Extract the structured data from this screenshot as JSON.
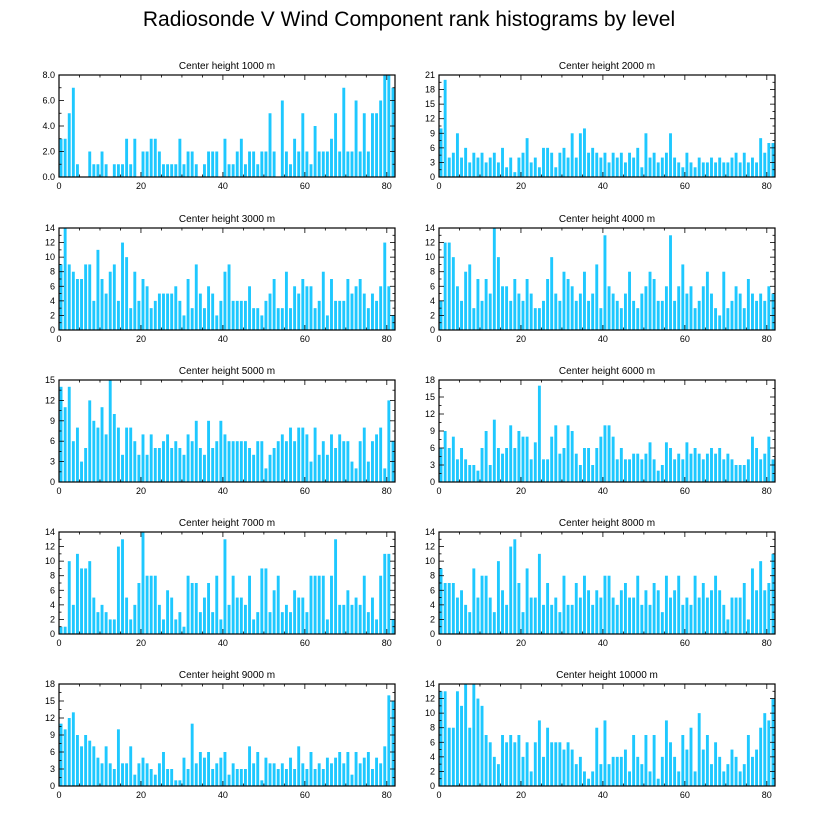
{
  "title": "Radiosonde V Wind Component rank histograms by level",
  "style": {
    "bar_color": "#1ec8ff",
    "axis_color": "#000000"
  },
  "chart_data": [
    {
      "type": "bar",
      "title": "Center height 1000 m",
      "x_start": 0,
      "xlim": [
        0,
        82
      ],
      "xticks": [
        0,
        20,
        40,
        60,
        80
      ],
      "ylim": [
        0,
        8
      ],
      "yticks": [
        0,
        2,
        4,
        6,
        8
      ],
      "ytick_labels": [
        "0.0",
        "2.0",
        "4.0",
        "6.0",
        "8.0"
      ],
      "values": [
        3,
        3,
        5,
        7,
        1,
        0,
        0,
        2,
        1,
        1,
        2,
        1,
        0,
        1,
        1,
        1,
        3,
        1,
        3,
        0,
        2,
        2,
        3,
        3,
        2,
        1,
        1,
        1,
        1,
        3,
        1,
        2,
        2,
        1,
        0,
        1,
        2,
        2,
        2,
        0,
        3,
        1,
        1,
        2,
        3,
        1,
        2,
        2,
        1,
        2,
        2,
        5,
        2,
        0,
        6,
        2,
        1,
        3,
        2,
        5,
        2,
        1,
        4,
        2,
        2,
        2,
        3,
        5,
        2,
        7,
        2,
        2,
        6,
        2,
        5,
        2,
        5,
        5,
        6,
        8,
        8,
        7
      ]
    },
    {
      "type": "bar",
      "title": "Center height 2000 m",
      "x_start": 0,
      "xlim": [
        0,
        82
      ],
      "xticks": [
        0,
        20,
        40,
        60,
        80
      ],
      "ylim": [
        0,
        21
      ],
      "yticks": [
        0,
        3,
        6,
        9,
        12,
        15,
        18,
        21
      ],
      "ytick_labels": [
        "0",
        "3",
        "6",
        "9",
        "12",
        "15",
        "18",
        "21"
      ],
      "values": [
        10,
        20,
        4,
        5,
        9,
        4,
        6,
        3,
        5,
        4,
        5,
        3,
        4,
        5,
        3,
        6,
        2,
        4,
        1,
        4,
        5,
        8,
        3,
        4,
        2,
        6,
        6,
        5,
        2,
        5,
        6,
        4,
        9,
        4,
        9,
        10,
        5,
        6,
        5,
        4,
        5,
        3,
        5,
        4,
        5,
        3,
        5,
        4,
        6,
        2,
        9,
        4,
        5,
        3,
        4,
        5,
        9,
        4,
        3,
        2,
        5,
        3,
        2,
        4,
        3,
        3,
        4,
        3,
        4,
        3,
        3,
        4,
        5,
        3,
        5,
        3,
        4,
        3,
        8,
        5,
        7,
        7
      ]
    },
    {
      "type": "bar",
      "title": "Center height 3000 m",
      "x_start": 0,
      "xlim": [
        0,
        82
      ],
      "xticks": [
        0,
        20,
        40,
        60,
        80
      ],
      "ylim": [
        0,
        14
      ],
      "yticks": [
        0,
        2,
        4,
        6,
        8,
        10,
        12,
        14
      ],
      "ytick_labels": [
        "0",
        "2",
        "4",
        "6",
        "8",
        "10",
        "12",
        "14"
      ],
      "values": [
        9,
        14,
        9,
        8,
        7,
        7,
        9,
        9,
        4,
        11,
        7,
        5,
        8,
        9,
        4,
        12,
        10,
        3,
        8,
        4,
        7,
        6,
        3,
        4,
        5,
        5,
        5,
        5,
        6,
        4,
        2,
        7,
        3,
        9,
        5,
        3,
        6,
        5,
        2,
        4,
        8,
        9,
        4,
        4,
        4,
        4,
        6,
        3,
        3,
        2,
        4,
        5,
        7,
        3,
        3,
        8,
        3,
        6,
        5,
        7,
        6,
        6,
        3,
        4,
        8,
        2,
        7,
        4,
        4,
        4,
        7,
        5,
        6,
        7,
        5,
        3,
        5,
        4,
        6,
        12,
        6,
        2
      ]
    },
    {
      "type": "bar",
      "title": "Center height 4000 m",
      "x_start": 0,
      "xlim": [
        0,
        82
      ],
      "xticks": [
        0,
        20,
        40,
        60,
        80
      ],
      "ylim": [
        0,
        14
      ],
      "yticks": [
        0,
        2,
        4,
        6,
        8,
        10,
        12,
        14
      ],
      "ytick_labels": [
        "0",
        "2",
        "4",
        "6",
        "8",
        "10",
        "12",
        "14"
      ],
      "values": [
        4,
        12,
        12,
        10,
        6,
        4,
        8,
        9,
        3,
        7,
        4,
        7,
        5,
        14,
        10,
        6,
        6,
        4,
        7,
        5,
        4,
        7,
        5,
        3,
        3,
        4,
        7,
        10,
        5,
        4,
        8,
        7,
        6,
        4,
        5,
        8,
        4,
        5,
        9,
        3,
        13,
        6,
        5,
        4,
        3,
        5,
        8,
        4,
        3,
        5,
        6,
        8,
        7,
        4,
        4,
        6,
        13,
        4,
        6,
        9,
        5,
        6,
        3,
        4,
        6,
        8,
        5,
        3,
        2,
        8,
        3,
        4,
        6,
        5,
        3,
        7,
        5,
        4,
        5,
        4,
        6,
        5
      ]
    },
    {
      "type": "bar",
      "title": "Center height 5000 m",
      "x_start": 0,
      "xlim": [
        0,
        82
      ],
      "xticks": [
        0,
        20,
        40,
        60,
        80
      ],
      "ylim": [
        0,
        15
      ],
      "yticks": [
        0,
        3,
        6,
        9,
        12,
        15
      ],
      "ytick_labels": [
        "0",
        "3",
        "6",
        "9",
        "12",
        "15"
      ],
      "values": [
        14,
        11,
        14,
        6,
        8,
        3,
        5,
        12,
        9,
        8,
        11,
        7,
        15,
        10,
        8,
        4,
        8,
        8,
        6,
        4,
        7,
        4,
        7,
        5,
        5,
        6,
        7,
        5,
        6,
        5,
        4,
        7,
        6,
        9,
        5,
        4,
        9,
        5,
        6,
        9,
        7,
        6,
        6,
        6,
        6,
        6,
        5,
        4,
        6,
        6,
        2,
        4,
        5,
        6,
        7,
        6,
        8,
        6,
        8,
        8,
        7,
        3,
        8,
        4,
        6,
        4,
        7,
        5,
        7,
        6,
        6,
        3,
        2,
        6,
        8,
        3,
        6,
        7,
        8,
        2,
        12,
        6
      ]
    },
    {
      "type": "bar",
      "title": "Center height 6000 m",
      "x_start": 0,
      "xlim": [
        0,
        82
      ],
      "xticks": [
        0,
        20,
        40,
        60,
        80
      ],
      "ylim": [
        0,
        18
      ],
      "yticks": [
        0,
        3,
        6,
        9,
        12,
        15,
        18
      ],
      "ytick_labels": [
        "0",
        "3",
        "6",
        "9",
        "12",
        "15",
        "18"
      ],
      "values": [
        6,
        9,
        6,
        8,
        4,
        6,
        4,
        3,
        3,
        2,
        6,
        9,
        3,
        11,
        6,
        5,
        6,
        10,
        6,
        9,
        8,
        8,
        4,
        7,
        17,
        4,
        4,
        8,
        10,
        5,
        6,
        10,
        9,
        5,
        3,
        6,
        6,
        3,
        6,
        8,
        10,
        10,
        8,
        4,
        6,
        4,
        4,
        5,
        5,
        4,
        5,
        7,
        4,
        2,
        3,
        7,
        6,
        4,
        5,
        4,
        7,
        5,
        6,
        5,
        4,
        5,
        6,
        5,
        6,
        4,
        5,
        4,
        3,
        3,
        3,
        4,
        8,
        6,
        4,
        5,
        8,
        4
      ]
    },
    {
      "type": "bar",
      "title": "Center height 7000 m",
      "x_start": 0,
      "xlim": [
        0,
        82
      ],
      "xticks": [
        0,
        20,
        40,
        60,
        80
      ],
      "ylim": [
        0,
        14
      ],
      "yticks": [
        0,
        2,
        4,
        6,
        8,
        10,
        12,
        14
      ],
      "ytick_labels": [
        "0",
        "2",
        "4",
        "6",
        "8",
        "10",
        "12",
        "14"
      ],
      "values": [
        1,
        1,
        10,
        4,
        11,
        9,
        9,
        10,
        5,
        3,
        4,
        3,
        2,
        2,
        12,
        13,
        5,
        2,
        4,
        7,
        14,
        8,
        8,
        8,
        4,
        2,
        6,
        5,
        2,
        3,
        1,
        8,
        7,
        7,
        3,
        5,
        7,
        3,
        8,
        2,
        13,
        4,
        8,
        5,
        5,
        4,
        8,
        2,
        3,
        9,
        9,
        3,
        6,
        8,
        3,
        4,
        3,
        6,
        5,
        5,
        3,
        8,
        8,
        8,
        8,
        2,
        8,
        13,
        4,
        4,
        6,
        4,
        5,
        4,
        8,
        3,
        5,
        2,
        8,
        11,
        11,
        2
      ]
    },
    {
      "type": "bar",
      "title": "Center height 8000 m",
      "x_start": 0,
      "xlim": [
        0,
        82
      ],
      "xticks": [
        0,
        20,
        40,
        60,
        80
      ],
      "ylim": [
        0,
        14
      ],
      "yticks": [
        0,
        2,
        4,
        6,
        8,
        10,
        12,
        14
      ],
      "ytick_labels": [
        "0",
        "2",
        "4",
        "6",
        "8",
        "10",
        "12",
        "14"
      ],
      "values": [
        9,
        7,
        7,
        7,
        5,
        6,
        4,
        3,
        9,
        5,
        8,
        8,
        5,
        3,
        10,
        6,
        4,
        12,
        13,
        7,
        3,
        9,
        5,
        5,
        11,
        4,
        7,
        4,
        5,
        3,
        8,
        4,
        4,
        7,
        5,
        8,
        6,
        4,
        6,
        5,
        8,
        8,
        5,
        4,
        6,
        7,
        5,
        5,
        8,
        4,
        6,
        4,
        7,
        6,
        3,
        8,
        5,
        6,
        8,
        4,
        5,
        4,
        8,
        5,
        7,
        5,
        6,
        8,
        6,
        4,
        2,
        5,
        5,
        5,
        7,
        2,
        9,
        6,
        10,
        6,
        7,
        11
      ]
    },
    {
      "type": "bar",
      "title": "Center height 9000 m",
      "x_start": 0,
      "xlim": [
        0,
        82
      ],
      "xticks": [
        0,
        20,
        40,
        60,
        80
      ],
      "ylim": [
        0,
        18
      ],
      "yticks": [
        0,
        3,
        6,
        9,
        12,
        15,
        18
      ],
      "ytick_labels": [
        "0",
        "3",
        "6",
        "9",
        "12",
        "15",
        "18"
      ],
      "values": [
        11,
        10,
        12,
        13,
        9,
        7,
        9,
        8,
        7,
        5,
        4,
        7,
        4,
        3,
        10,
        4,
        4,
        7,
        2,
        4,
        5,
        4,
        3,
        2,
        4,
        6,
        3,
        3,
        1,
        1,
        5,
        3,
        11,
        4,
        6,
        5,
        6,
        3,
        4,
        5,
        6,
        2,
        4,
        3,
        3,
        3,
        7,
        4,
        6,
        1,
        5,
        4,
        4,
        3,
        4,
        3,
        5,
        3,
        7,
        4,
        3,
        6,
        3,
        4,
        3,
        5,
        4,
        5,
        6,
        4,
        6,
        2,
        6,
        4,
        5,
        6,
        3,
        5,
        4,
        7,
        16,
        15
      ]
    },
    {
      "type": "bar",
      "title": "Center height 10000 m",
      "x_start": 0,
      "xlim": [
        0,
        82
      ],
      "xticks": [
        0,
        20,
        40,
        60,
        80
      ],
      "ylim": [
        0,
        14
      ],
      "yticks": [
        0,
        2,
        4,
        6,
        8,
        10,
        12,
        14
      ],
      "ytick_labels": [
        "0",
        "2",
        "4",
        "6",
        "8",
        "10",
        "12",
        "14"
      ],
      "values": [
        13,
        13,
        8,
        8,
        13,
        11,
        14,
        8,
        14,
        12,
        11,
        7,
        6,
        4,
        3,
        7,
        6,
        7,
        6,
        7,
        4,
        6,
        2,
        6,
        9,
        4,
        8,
        6,
        6,
        6,
        5,
        6,
        5,
        3,
        4,
        2,
        1,
        2,
        8,
        3,
        9,
        3,
        4,
        4,
        4,
        5,
        2,
        7,
        4,
        3,
        7,
        2,
        7,
        1,
        4,
        9,
        6,
        4,
        2,
        7,
        5,
        8,
        2,
        10,
        5,
        7,
        3,
        6,
        4,
        2,
        3,
        5,
        4,
        2,
        3,
        7,
        4,
        5,
        8,
        10,
        9,
        12
      ]
    }
  ]
}
